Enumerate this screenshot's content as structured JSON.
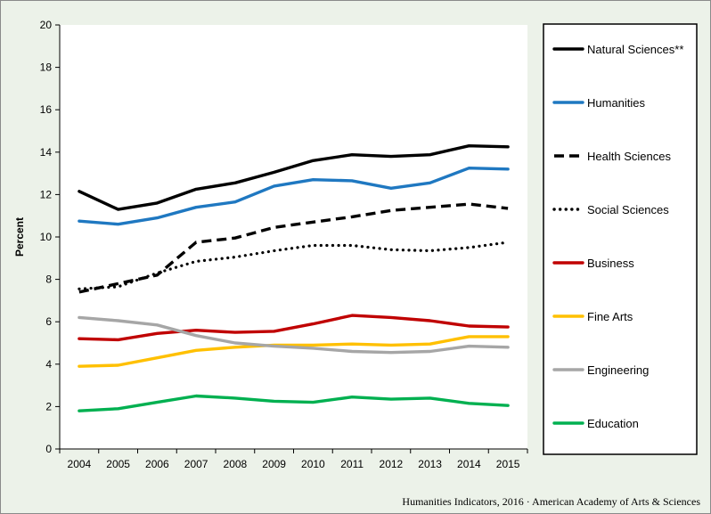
{
  "chart_data": {
    "type": "line",
    "title": "",
    "xlabel": "",
    "ylabel": "Percent",
    "ylim": [
      0,
      20
    ],
    "y_ticks": [
      "0",
      "2",
      "4",
      "6",
      "8",
      "10",
      "12",
      "14",
      "16",
      "18",
      "20"
    ],
    "categories": [
      "2004",
      "2005",
      "2006",
      "2007",
      "2008",
      "2009",
      "2010",
      "2011",
      "2012",
      "2013",
      "2014",
      "2015"
    ],
    "legend_position": "right",
    "grid": false,
    "series": [
      {
        "name": "Natural Sciences**",
        "color": "#000000",
        "style": "solid",
        "values": [
          12.15,
          11.3,
          11.6,
          12.25,
          12.55,
          13.05,
          13.6,
          13.88,
          13.8,
          13.88,
          14.3,
          14.25
        ]
      },
      {
        "name": "Humanities",
        "color": "#1f78c1",
        "style": "solid",
        "values": [
          10.75,
          10.6,
          10.9,
          11.4,
          11.65,
          12.4,
          12.7,
          12.65,
          12.3,
          12.55,
          13.25,
          13.2
        ]
      },
      {
        "name": "Health Sciences",
        "color": "#000000",
        "style": "dashed",
        "values": [
          7.4,
          7.8,
          8.2,
          9.75,
          9.95,
          10.45,
          10.7,
          10.95,
          11.25,
          11.4,
          11.55,
          11.35
        ]
      },
      {
        "name": "Social Sciences",
        "color": "#000000",
        "style": "dotted",
        "values": [
          7.55,
          7.65,
          8.3,
          8.85,
          9.05,
          9.35,
          9.6,
          9.6,
          9.4,
          9.35,
          9.5,
          9.75
        ]
      },
      {
        "name": "Business",
        "color": "#c00000",
        "style": "solid",
        "values": [
          5.2,
          5.15,
          5.45,
          5.6,
          5.5,
          5.55,
          5.9,
          6.3,
          6.2,
          6.05,
          5.8,
          5.75
        ]
      },
      {
        "name": "Fine Arts",
        "color": "#ffc000",
        "style": "solid",
        "values": [
          3.9,
          3.95,
          4.3,
          4.65,
          4.8,
          4.9,
          4.9,
          4.95,
          4.9,
          4.95,
          5.3,
          5.3
        ]
      },
      {
        "name": "Engineering",
        "color": "#a6a6a6",
        "style": "solid",
        "values": [
          6.2,
          6.05,
          5.85,
          5.35,
          5.0,
          4.85,
          4.75,
          4.6,
          4.55,
          4.6,
          4.85,
          4.8
        ]
      },
      {
        "name": "Education",
        "color": "#00b050",
        "style": "solid",
        "values": [
          1.8,
          1.9,
          2.2,
          2.5,
          2.4,
          2.25,
          2.2,
          2.45,
          2.35,
          2.4,
          2.15,
          2.05
        ]
      }
    ]
  },
  "footer": "Humanities Indicators, 2016 · American Academy of Arts & Sciences"
}
